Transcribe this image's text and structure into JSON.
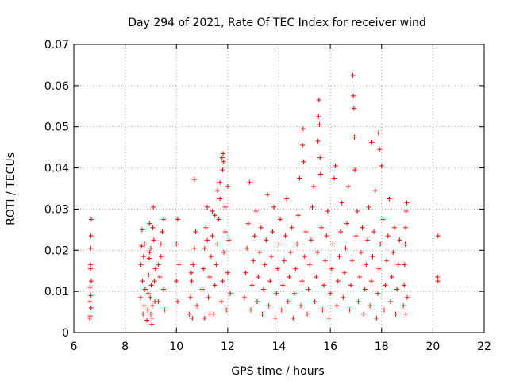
{
  "chart_data": {
    "type": "scatter",
    "title": "Day 294 of 2021, Rate Of TEC Index for receiver wind",
    "xlabel": "GPS time / hours",
    "ylabel": "ROTI / TECUs",
    "xlim": [
      6,
      22
    ],
    "ylim": [
      0,
      0.07
    ],
    "x_ticks": [
      "6",
      "8",
      "10",
      "12",
      "14",
      "16",
      "18",
      "20",
      "22"
    ],
    "y_ticks": [
      "0",
      "0.01",
      "0.02",
      "0.03",
      "0.04",
      "0.05",
      "0.06",
      "0.07"
    ],
    "grid": true,
    "marker": "+",
    "color": "#ff0000",
    "series": [
      {
        "values": [
          [
            6.62,
            0.0035
          ],
          [
            6.63,
            0.0075
          ],
          [
            6.64,
            0.011
          ],
          [
            6.65,
            0.0155
          ],
          [
            6.66,
            0.0205
          ],
          [
            6.67,
            0.0235
          ],
          [
            6.68,
            0.0275
          ],
          [
            6.64,
            0.004
          ],
          [
            6.66,
            0.009
          ],
          [
            6.68,
            0.0125
          ],
          [
            6.65,
            0.0165
          ],
          [
            6.67,
            0.006
          ],
          [
            8.6,
            0.0085
          ],
          [
            8.62,
            0.0165
          ],
          [
            8.64,
            0.021
          ],
          [
            8.66,
            0.025
          ],
          [
            8.68,
            0.0125
          ],
          [
            8.7,
            0.0045
          ],
          [
            8.72,
            0.0185
          ],
          [
            8.74,
            0.0065
          ],
          [
            8.76,
            0.0215
          ],
          [
            8.78,
            0.0105
          ],
          [
            8.85,
            0.003
          ],
          [
            8.88,
            0.0055
          ],
          [
            8.9,
            0.0095
          ],
          [
            8.92,
            0.014
          ],
          [
            8.94,
            0.018
          ],
          [
            8.96,
            0.0195
          ],
          [
            8.98,
            0.0085
          ],
          [
            9.0,
            0.0045
          ],
          [
            9.02,
            0.0115
          ],
          [
            9.04,
            0.002
          ],
          [
            9.06,
            0.0065
          ],
          [
            9.08,
            0.0255
          ],
          [
            9.1,
            0.0305
          ],
          [
            9.12,
            0.0225
          ],
          [
            9.14,
            0.0125
          ],
          [
            9.16,
            0.0075
          ],
          [
            9.18,
            0.0155
          ],
          [
            9.05,
            0.0035
          ],
          [
            9.0,
            0.0205
          ],
          [
            8.95,
            0.0265
          ],
          [
            9.3,
            0.0075
          ],
          [
            9.35,
            0.0135
          ],
          [
            9.4,
            0.0185
          ],
          [
            9.45,
            0.0245
          ],
          [
            9.5,
            0.0105
          ],
          [
            9.55,
            0.0055
          ],
          [
            9.4,
            0.0215
          ],
          [
            9.3,
            0.0165
          ],
          [
            9.5,
            0.0275
          ],
          [
            10.0,
            0.0125
          ],
          [
            10.05,
            0.0075
          ],
          [
            10.1,
            0.0165
          ],
          [
            10.0,
            0.0215
          ],
          [
            10.05,
            0.0275
          ],
          [
            10.5,
            0.0045
          ],
          [
            10.55,
            0.0085
          ],
          [
            10.6,
            0.0125
          ],
          [
            10.65,
            0.0165
          ],
          [
            10.7,
            0.0205
          ],
          [
            10.75,
            0.0245
          ],
          [
            10.8,
            0.0065
          ],
          [
            10.58,
            0.0145
          ],
          [
            10.7,
            0.0372
          ],
          [
            10.62,
            0.0035
          ],
          [
            11.0,
            0.0105
          ],
          [
            11.05,
            0.0155
          ],
          [
            11.1,
            0.0205
          ],
          [
            11.15,
            0.0255
          ],
          [
            11.2,
            0.0305
          ],
          [
            11.25,
            0.0085
          ],
          [
            11.3,
            0.0135
          ],
          [
            11.35,
            0.0185
          ],
          [
            11.4,
            0.0235
          ],
          [
            11.45,
            0.0045
          ],
          [
            11.5,
            0.0115
          ],
          [
            11.55,
            0.0165
          ],
          [
            11.6,
            0.0215
          ],
          [
            11.65,
            0.0275
          ],
          [
            11.7,
            0.0325
          ],
          [
            11.75,
            0.0075
          ],
          [
            11.8,
            0.0125
          ],
          [
            11.85,
            0.0195
          ],
          [
            11.9,
            0.0245
          ],
          [
            11.95,
            0.0055
          ],
          [
            12.0,
            0.0145
          ],
          [
            12.05,
            0.0225
          ],
          [
            12.1,
            0.0095
          ],
          [
            11.1,
            0.0035
          ],
          [
            11.3,
            0.0045
          ],
          [
            11.5,
            0.0285
          ],
          [
            11.7,
            0.0365
          ],
          [
            11.8,
            0.0395
          ],
          [
            11.82,
            0.0435
          ],
          [
            11.84,
            0.0415
          ],
          [
            11.78,
            0.0425
          ],
          [
            11.6,
            0.0345
          ],
          [
            11.4,
            0.0295
          ],
          [
            11.2,
            0.0225
          ],
          [
            11.9,
            0.0305
          ],
          [
            12.0,
            0.0355
          ],
          [
            12.65,
            0.0085
          ],
          [
            12.7,
            0.0145
          ],
          [
            12.75,
            0.0205
          ],
          [
            12.8,
            0.0265
          ],
          [
            12.85,
            0.0365
          ],
          [
            12.9,
            0.0055
          ],
          [
            12.95,
            0.0115
          ],
          [
            13.0,
            0.0175
          ],
          [
            13.05,
            0.0235
          ],
          [
            13.1,
            0.0295
          ],
          [
            13.15,
            0.0075
          ],
          [
            13.2,
            0.0135
          ],
          [
            13.25,
            0.0195
          ],
          [
            13.3,
            0.0255
          ],
          [
            13.35,
            0.0045
          ],
          [
            13.4,
            0.0105
          ],
          [
            13.45,
            0.0165
          ],
          [
            13.5,
            0.0225
          ],
          [
            13.55,
            0.0335
          ],
          [
            13.6,
            0.0065
          ],
          [
            13.65,
            0.0125
          ],
          [
            13.7,
            0.0185
          ],
          [
            13.75,
            0.0245
          ],
          [
            13.8,
            0.0305
          ],
          [
            13.85,
            0.0035
          ],
          [
            13.9,
            0.0095
          ],
          [
            13.95,
            0.0155
          ],
          [
            14.0,
            0.0215
          ],
          [
            14.05,
            0.0275
          ],
          [
            14.1,
            0.0055
          ],
          [
            14.15,
            0.0115
          ],
          [
            14.2,
            0.0175
          ],
          [
            14.25,
            0.0235
          ],
          [
            14.3,
            0.0325
          ],
          [
            14.35,
            0.0075
          ],
          [
            14.4,
            0.0135
          ],
          [
            14.45,
            0.0195
          ],
          [
            14.5,
            0.0255
          ],
          [
            14.55,
            0.0035
          ],
          [
            14.6,
            0.0095
          ],
          [
            14.65,
            0.0155
          ],
          [
            14.7,
            0.0215
          ],
          [
            14.75,
            0.0285
          ],
          [
            14.8,
            0.0375
          ],
          [
            14.85,
            0.0065
          ],
          [
            14.9,
            0.0125
          ],
          [
            14.92,
            0.0455
          ],
          [
            14.94,
            0.0495
          ],
          [
            14.96,
            0.0415
          ],
          [
            15.0,
            0.0185
          ],
          [
            15.05,
            0.0245
          ],
          [
            15.1,
            0.0045
          ],
          [
            15.15,
            0.0105
          ],
          [
            15.2,
            0.0165
          ],
          [
            15.25,
            0.0225
          ],
          [
            15.3,
            0.0305
          ],
          [
            15.35,
            0.0355
          ],
          [
            15.4,
            0.0075
          ],
          [
            15.45,
            0.0135
          ],
          [
            15.5,
            0.0195
          ],
          [
            15.52,
            0.0465
          ],
          [
            15.54,
            0.0525
          ],
          [
            15.56,
            0.0565
          ],
          [
            15.58,
            0.0505
          ],
          [
            15.6,
            0.0425
          ],
          [
            15.62,
            0.0385
          ],
          [
            15.65,
            0.0255
          ],
          [
            15.7,
            0.0055
          ],
          [
            15.75,
            0.0115
          ],
          [
            15.8,
            0.0175
          ],
          [
            15.85,
            0.0235
          ],
          [
            15.9,
            0.0295
          ],
          [
            15.95,
            0.0035
          ],
          [
            16.0,
            0.0095
          ],
          [
            16.05,
            0.0155
          ],
          [
            16.1,
            0.0215
          ],
          [
            16.15,
            0.0375
          ],
          [
            16.2,
            0.0405
          ],
          [
            16.25,
            0.0065
          ],
          [
            16.3,
            0.0125
          ],
          [
            16.35,
            0.0185
          ],
          [
            16.4,
            0.0245
          ],
          [
            16.45,
            0.0315
          ],
          [
            16.5,
            0.0085
          ],
          [
            16.55,
            0.0145
          ],
          [
            16.6,
            0.0205
          ],
          [
            16.65,
            0.0265
          ],
          [
            16.7,
            0.0355
          ],
          [
            16.75,
            0.0055
          ],
          [
            16.8,
            0.0115
          ],
          [
            16.85,
            0.0175
          ],
          [
            16.88,
            0.0625
          ],
          [
            16.9,
            0.0575
          ],
          [
            16.92,
            0.0545
          ],
          [
            16.94,
            0.0475
          ],
          [
            16.96,
            0.0395
          ],
          [
            17.0,
            0.0235
          ],
          [
            17.05,
            0.0295
          ],
          [
            17.1,
            0.0075
          ],
          [
            17.15,
            0.0135
          ],
          [
            17.2,
            0.0195
          ],
          [
            17.25,
            0.0255
          ],
          [
            17.3,
            0.0045
          ],
          [
            17.35,
            0.0105
          ],
          [
            17.4,
            0.0165
          ],
          [
            17.45,
            0.0225
          ],
          [
            17.5,
            0.0305
          ],
          [
            17.55,
            0.0065
          ],
          [
            17.6,
            0.0125
          ],
          [
            17.62,
            0.0462
          ],
          [
            17.65,
            0.0185
          ],
          [
            17.7,
            0.0245
          ],
          [
            17.75,
            0.0345
          ],
          [
            17.8,
            0.0035
          ],
          [
            17.85,
            0.0095
          ],
          [
            17.88,
            0.0485
          ],
          [
            17.9,
            0.0155
          ],
          [
            17.92,
            0.0445
          ],
          [
            17.95,
            0.0215
          ],
          [
            18.0,
            0.0405
          ],
          [
            18.05,
            0.0275
          ],
          [
            18.1,
            0.0055
          ],
          [
            18.15,
            0.0115
          ],
          [
            18.2,
            0.0175
          ],
          [
            18.25,
            0.0235
          ],
          [
            18.3,
            0.0325
          ],
          [
            18.35,
            0.0075
          ],
          [
            18.4,
            0.0135
          ],
          [
            18.45,
            0.0195
          ],
          [
            18.5,
            0.0255
          ],
          [
            18.55,
            0.0045
          ],
          [
            18.6,
            0.0105
          ],
          [
            18.65,
            0.0165
          ],
          [
            18.7,
            0.0225
          ],
          [
            18.85,
            0.0065
          ],
          [
            18.88,
            0.0115
          ],
          [
            18.9,
            0.0165
          ],
          [
            18.92,
            0.0215
          ],
          [
            18.94,
            0.0255
          ],
          [
            18.96,
            0.0295
          ],
          [
            18.98,
            0.0315
          ],
          [
            19.0,
            0.0085
          ],
          [
            18.95,
            0.0045
          ],
          [
            20.2,
            0.0235
          ],
          [
            20.18,
            0.0135
          ],
          [
            20.2,
            0.0125
          ]
        ]
      }
    ]
  }
}
